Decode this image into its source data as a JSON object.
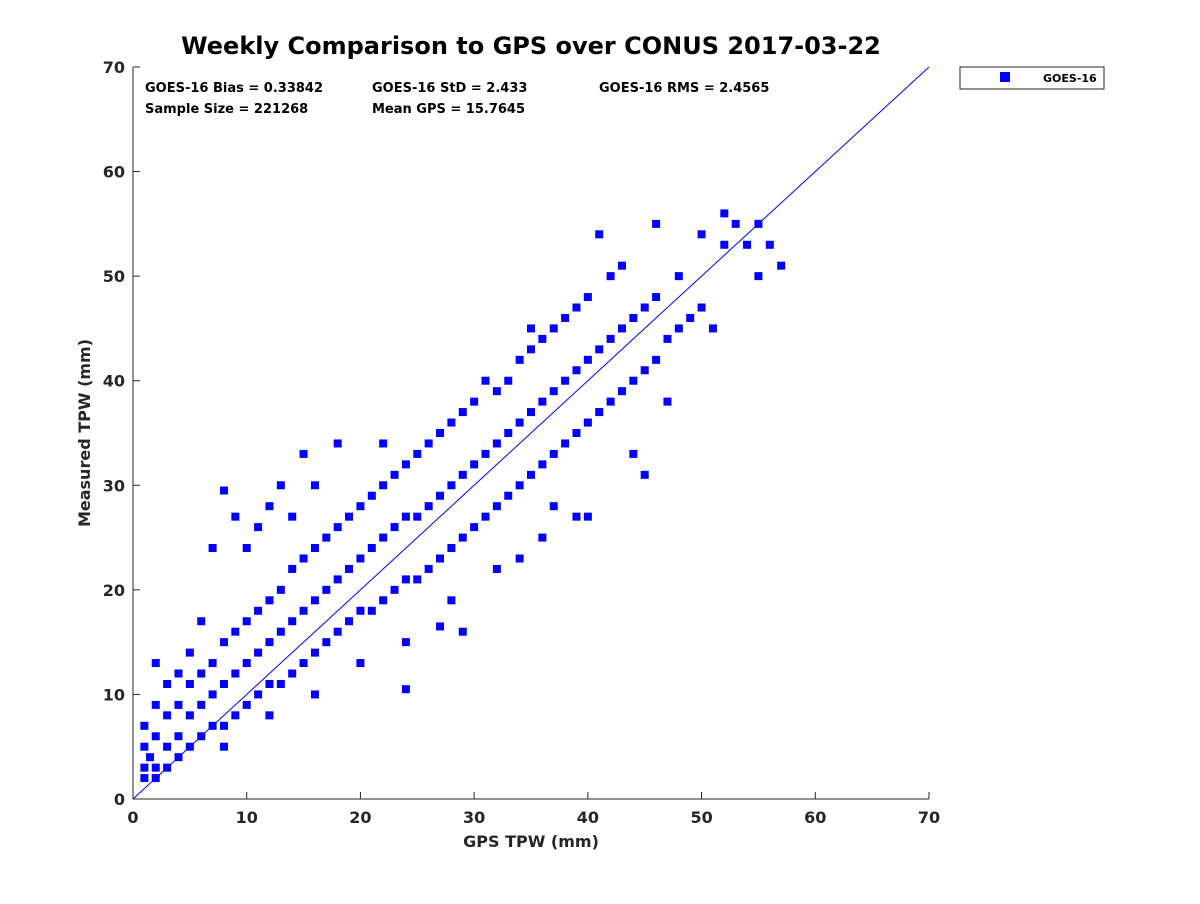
{
  "chart_data": {
    "type": "scatter",
    "title": "Weekly Comparison to GPS over CONUS 2017-03-22",
    "xlabel": "GPS TPW (mm)",
    "ylabel": "Measured TPW (mm)",
    "xlim": [
      0,
      70
    ],
    "ylim": [
      0,
      70
    ],
    "xticks": [
      0,
      10,
      20,
      30,
      40,
      50,
      60,
      70
    ],
    "yticks": [
      0,
      10,
      20,
      30,
      40,
      50,
      60,
      70
    ],
    "grid": false,
    "legend": {
      "position": "outside-top-right",
      "entries": [
        "GOES-16"
      ]
    },
    "series": [
      {
        "name": "GOES-16",
        "color": "#0000ff",
        "marker": "square",
        "points": [
          [
            1,
            2
          ],
          [
            1,
            3
          ],
          [
            1,
            5
          ],
          [
            1,
            7
          ],
          [
            1.5,
            4
          ],
          [
            2,
            2
          ],
          [
            2,
            3
          ],
          [
            2,
            6
          ],
          [
            2,
            9
          ],
          [
            2,
            13
          ],
          [
            3,
            3
          ],
          [
            3,
            5
          ],
          [
            3,
            8
          ],
          [
            3,
            11
          ],
          [
            4,
            4
          ],
          [
            4,
            6
          ],
          [
            4,
            9
          ],
          [
            4,
            12
          ],
          [
            5,
            5
          ],
          [
            5,
            8
          ],
          [
            5,
            11
          ],
          [
            5,
            14
          ],
          [
            6,
            6
          ],
          [
            6,
            9
          ],
          [
            6,
            12
          ],
          [
            6,
            17
          ],
          [
            7,
            7
          ],
          [
            7,
            10
          ],
          [
            7,
            13
          ],
          [
            7,
            24
          ],
          [
            8,
            7
          ],
          [
            8,
            11
          ],
          [
            8,
            15
          ],
          [
            8,
            29.5
          ],
          [
            9,
            8
          ],
          [
            9,
            12
          ],
          [
            9,
            16
          ],
          [
            9,
            27
          ],
          [
            10,
            9
          ],
          [
            10,
            13
          ],
          [
            10,
            17
          ],
          [
            10,
            24
          ],
          [
            11,
            10
          ],
          [
            11,
            14
          ],
          [
            11,
            18
          ],
          [
            11,
            26
          ],
          [
            12,
            11
          ],
          [
            12,
            15
          ],
          [
            12,
            19
          ],
          [
            12,
            28
          ],
          [
            13,
            11
          ],
          [
            13,
            16
          ],
          [
            13,
            20
          ],
          [
            13,
            30
          ],
          [
            14,
            12
          ],
          [
            14,
            17
          ],
          [
            14,
            22
          ],
          [
            14,
            27
          ],
          [
            15,
            13
          ],
          [
            15,
            18
          ],
          [
            15,
            23
          ],
          [
            15,
            33
          ],
          [
            16,
            14
          ],
          [
            16,
            19
          ],
          [
            16,
            24
          ],
          [
            16,
            30
          ],
          [
            17,
            15
          ],
          [
            17,
            20
          ],
          [
            17,
            25
          ],
          [
            18,
            16
          ],
          [
            18,
            21
          ],
          [
            18,
            26
          ],
          [
            18,
            34
          ],
          [
            19,
            17
          ],
          [
            19,
            22
          ],
          [
            19,
            27
          ],
          [
            20,
            18
          ],
          [
            20,
            23
          ],
          [
            20,
            28
          ],
          [
            21,
            18
          ],
          [
            21,
            24
          ],
          [
            21,
            29
          ],
          [
            22,
            19
          ],
          [
            22,
            25
          ],
          [
            22,
            30
          ],
          [
            22,
            34
          ],
          [
            23,
            20
          ],
          [
            23,
            26
          ],
          [
            23,
            31
          ],
          [
            24,
            21
          ],
          [
            24,
            27
          ],
          [
            24,
            32
          ],
          [
            25,
            21
          ],
          [
            25,
            27
          ],
          [
            25,
            33
          ],
          [
            26,
            22
          ],
          [
            26,
            28
          ],
          [
            26,
            34
          ],
          [
            27,
            23
          ],
          [
            27,
            29
          ],
          [
            27,
            35
          ],
          [
            28,
            24
          ],
          [
            28,
            30
          ],
          [
            28,
            36
          ],
          [
            29,
            16
          ],
          [
            29,
            25
          ],
          [
            29,
            31
          ],
          [
            29,
            37
          ],
          [
            30,
            26
          ],
          [
            30,
            32
          ],
          [
            30,
            38
          ],
          [
            31,
            27
          ],
          [
            31,
            33
          ],
          [
            31,
            40
          ],
          [
            32,
            28
          ],
          [
            32,
            34
          ],
          [
            32,
            39
          ],
          [
            33,
            29
          ],
          [
            33,
            35
          ],
          [
            33,
            40
          ],
          [
            34,
            23
          ],
          [
            34,
            30
          ],
          [
            34,
            36
          ],
          [
            34,
            42
          ],
          [
            35,
            31
          ],
          [
            35,
            37
          ],
          [
            35,
            43
          ],
          [
            35,
            45
          ],
          [
            36,
            32
          ],
          [
            36,
            38
          ],
          [
            36,
            44
          ],
          [
            37,
            28
          ],
          [
            37,
            33
          ],
          [
            37,
            39
          ],
          [
            37,
            45
          ],
          [
            38,
            34
          ],
          [
            38,
            40
          ],
          [
            38,
            46
          ],
          [
            39,
            27
          ],
          [
            39,
            35
          ],
          [
            39,
            41
          ],
          [
            39,
            47
          ],
          [
            40,
            36
          ],
          [
            40,
            42
          ],
          [
            40,
            48
          ],
          [
            41,
            37
          ],
          [
            41,
            43
          ],
          [
            41,
            54
          ],
          [
            42,
            38
          ],
          [
            42,
            44
          ],
          [
            42,
            50
          ],
          [
            43,
            39
          ],
          [
            43,
            45
          ],
          [
            43,
            51
          ],
          [
            44,
            33
          ],
          [
            44,
            40
          ],
          [
            44,
            46
          ],
          [
            45,
            31
          ],
          [
            45,
            41
          ],
          [
            45,
            47
          ],
          [
            46,
            42
          ],
          [
            46,
            48
          ],
          [
            46,
            55
          ],
          [
            47,
            38
          ],
          [
            47,
            44
          ],
          [
            48,
            45
          ],
          [
            48,
            50
          ],
          [
            49,
            46
          ],
          [
            50,
            47
          ],
          [
            50,
            54
          ],
          [
            51,
            45
          ],
          [
            52,
            53
          ],
          [
            52,
            56
          ],
          [
            53,
            55
          ],
          [
            54,
            53
          ],
          [
            55,
            55
          ],
          [
            55,
            50
          ],
          [
            56,
            53
          ],
          [
            57,
            51
          ],
          [
            8,
            5
          ],
          [
            12,
            8
          ],
          [
            16,
            10
          ],
          [
            20,
            13
          ],
          [
            24,
            15
          ],
          [
            28,
            19
          ],
          [
            32,
            22
          ],
          [
            36,
            25
          ],
          [
            40,
            27
          ],
          [
            24,
            10.5
          ],
          [
            27,
            16.5
          ]
        ]
      }
    ],
    "annotations": {
      "bias": "GOES-16 Bias = 0.33842",
      "std": "GOES-16 StD = 2.433",
      "rms": "GOES-16 RMS = 2.4565",
      "sample_size": "Sample Size = 221268",
      "mean_gps": "Mean GPS = 15.7645"
    },
    "reference_line": {
      "type": "1:1",
      "from": [
        0,
        0
      ],
      "to": [
        70,
        70
      ]
    }
  }
}
